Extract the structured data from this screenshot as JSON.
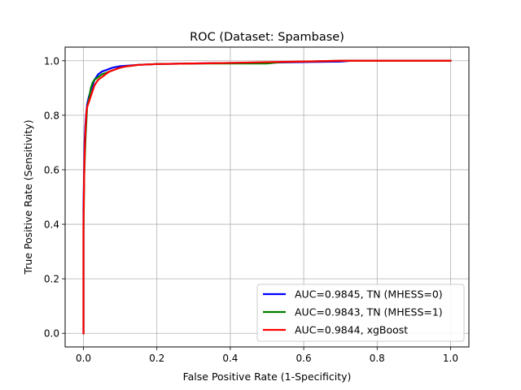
{
  "chart_data": {
    "type": "line",
    "title": "ROC (Dataset: Spambase)",
    "xlabel": "False Positive Rate (1-Specificity)",
    "ylabel": "True Positive Rate (Sensitivity)",
    "xlim": [
      -0.05,
      1.05
    ],
    "ylim": [
      -0.05,
      1.05
    ],
    "xticks": [
      0.0,
      0.2,
      0.4,
      0.6,
      0.8,
      1.0
    ],
    "xtick_labels": [
      "0.0",
      "0.2",
      "0.4",
      "0.6",
      "0.8",
      "1.0"
    ],
    "yticks": [
      0.0,
      0.2,
      0.4,
      0.6,
      0.8,
      1.0
    ],
    "ytick_labels": [
      "0.0",
      "0.2",
      "0.4",
      "0.6",
      "0.8",
      "1.0"
    ],
    "grid": true,
    "legend_position": "lower-right",
    "series": [
      {
        "name": "AUC=0.9845, TN (MHESS=0)",
        "color": "#0000ff",
        "x": [
          0.0,
          0.0,
          0.002,
          0.003,
          0.005,
          0.007,
          0.01,
          0.015,
          0.02,
          0.03,
          0.04,
          0.05,
          0.06,
          0.07,
          0.08,
          0.1,
          0.15,
          0.2,
          0.3,
          0.4,
          0.5,
          0.6,
          0.7,
          0.73,
          0.8,
          0.83,
          1.0
        ],
        "y": [
          0.0,
          0.46,
          0.62,
          0.7,
          0.76,
          0.8,
          0.84,
          0.87,
          0.89,
          0.93,
          0.95,
          0.96,
          0.965,
          0.97,
          0.975,
          0.98,
          0.985,
          0.988,
          0.99,
          0.992,
          0.993,
          0.995,
          0.997,
          1.0,
          1.0,
          1.0,
          1.0
        ]
      },
      {
        "name": "AUC=0.9843, TN (MHESS=1)",
        "color": "#008000",
        "x": [
          0.0,
          0.0,
          0.002,
          0.004,
          0.006,
          0.008,
          0.01,
          0.015,
          0.02,
          0.025,
          0.03,
          0.04,
          0.05,
          0.06,
          0.07,
          0.08,
          0.09,
          0.1,
          0.12,
          0.15,
          0.2,
          0.3,
          0.4,
          0.5,
          0.54,
          0.6,
          0.7,
          1.0
        ],
        "y": [
          0.0,
          0.35,
          0.58,
          0.66,
          0.73,
          0.78,
          0.83,
          0.86,
          0.9,
          0.92,
          0.93,
          0.94,
          0.95,
          0.955,
          0.96,
          0.965,
          0.97,
          0.975,
          0.98,
          0.985,
          0.988,
          0.99,
          0.99,
          0.99,
          0.995,
          0.997,
          1.0,
          1.0
        ]
      },
      {
        "name": "AUC=0.9844, xgBoost",
        "color": "#ff0000",
        "x": [
          0.0,
          0.0,
          0.002,
          0.004,
          0.006,
          0.008,
          0.01,
          0.015,
          0.02,
          0.025,
          0.03,
          0.04,
          0.05,
          0.06,
          0.07,
          0.08,
          0.1,
          0.12,
          0.15,
          0.2,
          0.3,
          0.4,
          0.5,
          0.6,
          0.7,
          1.0
        ],
        "y": [
          0.0,
          0.4,
          0.6,
          0.7,
          0.76,
          0.81,
          0.83,
          0.85,
          0.87,
          0.89,
          0.91,
          0.93,
          0.94,
          0.95,
          0.96,
          0.965,
          0.975,
          0.98,
          0.985,
          0.988,
          0.99,
          0.992,
          0.995,
          0.997,
          1.0,
          1.0
        ]
      }
    ]
  }
}
